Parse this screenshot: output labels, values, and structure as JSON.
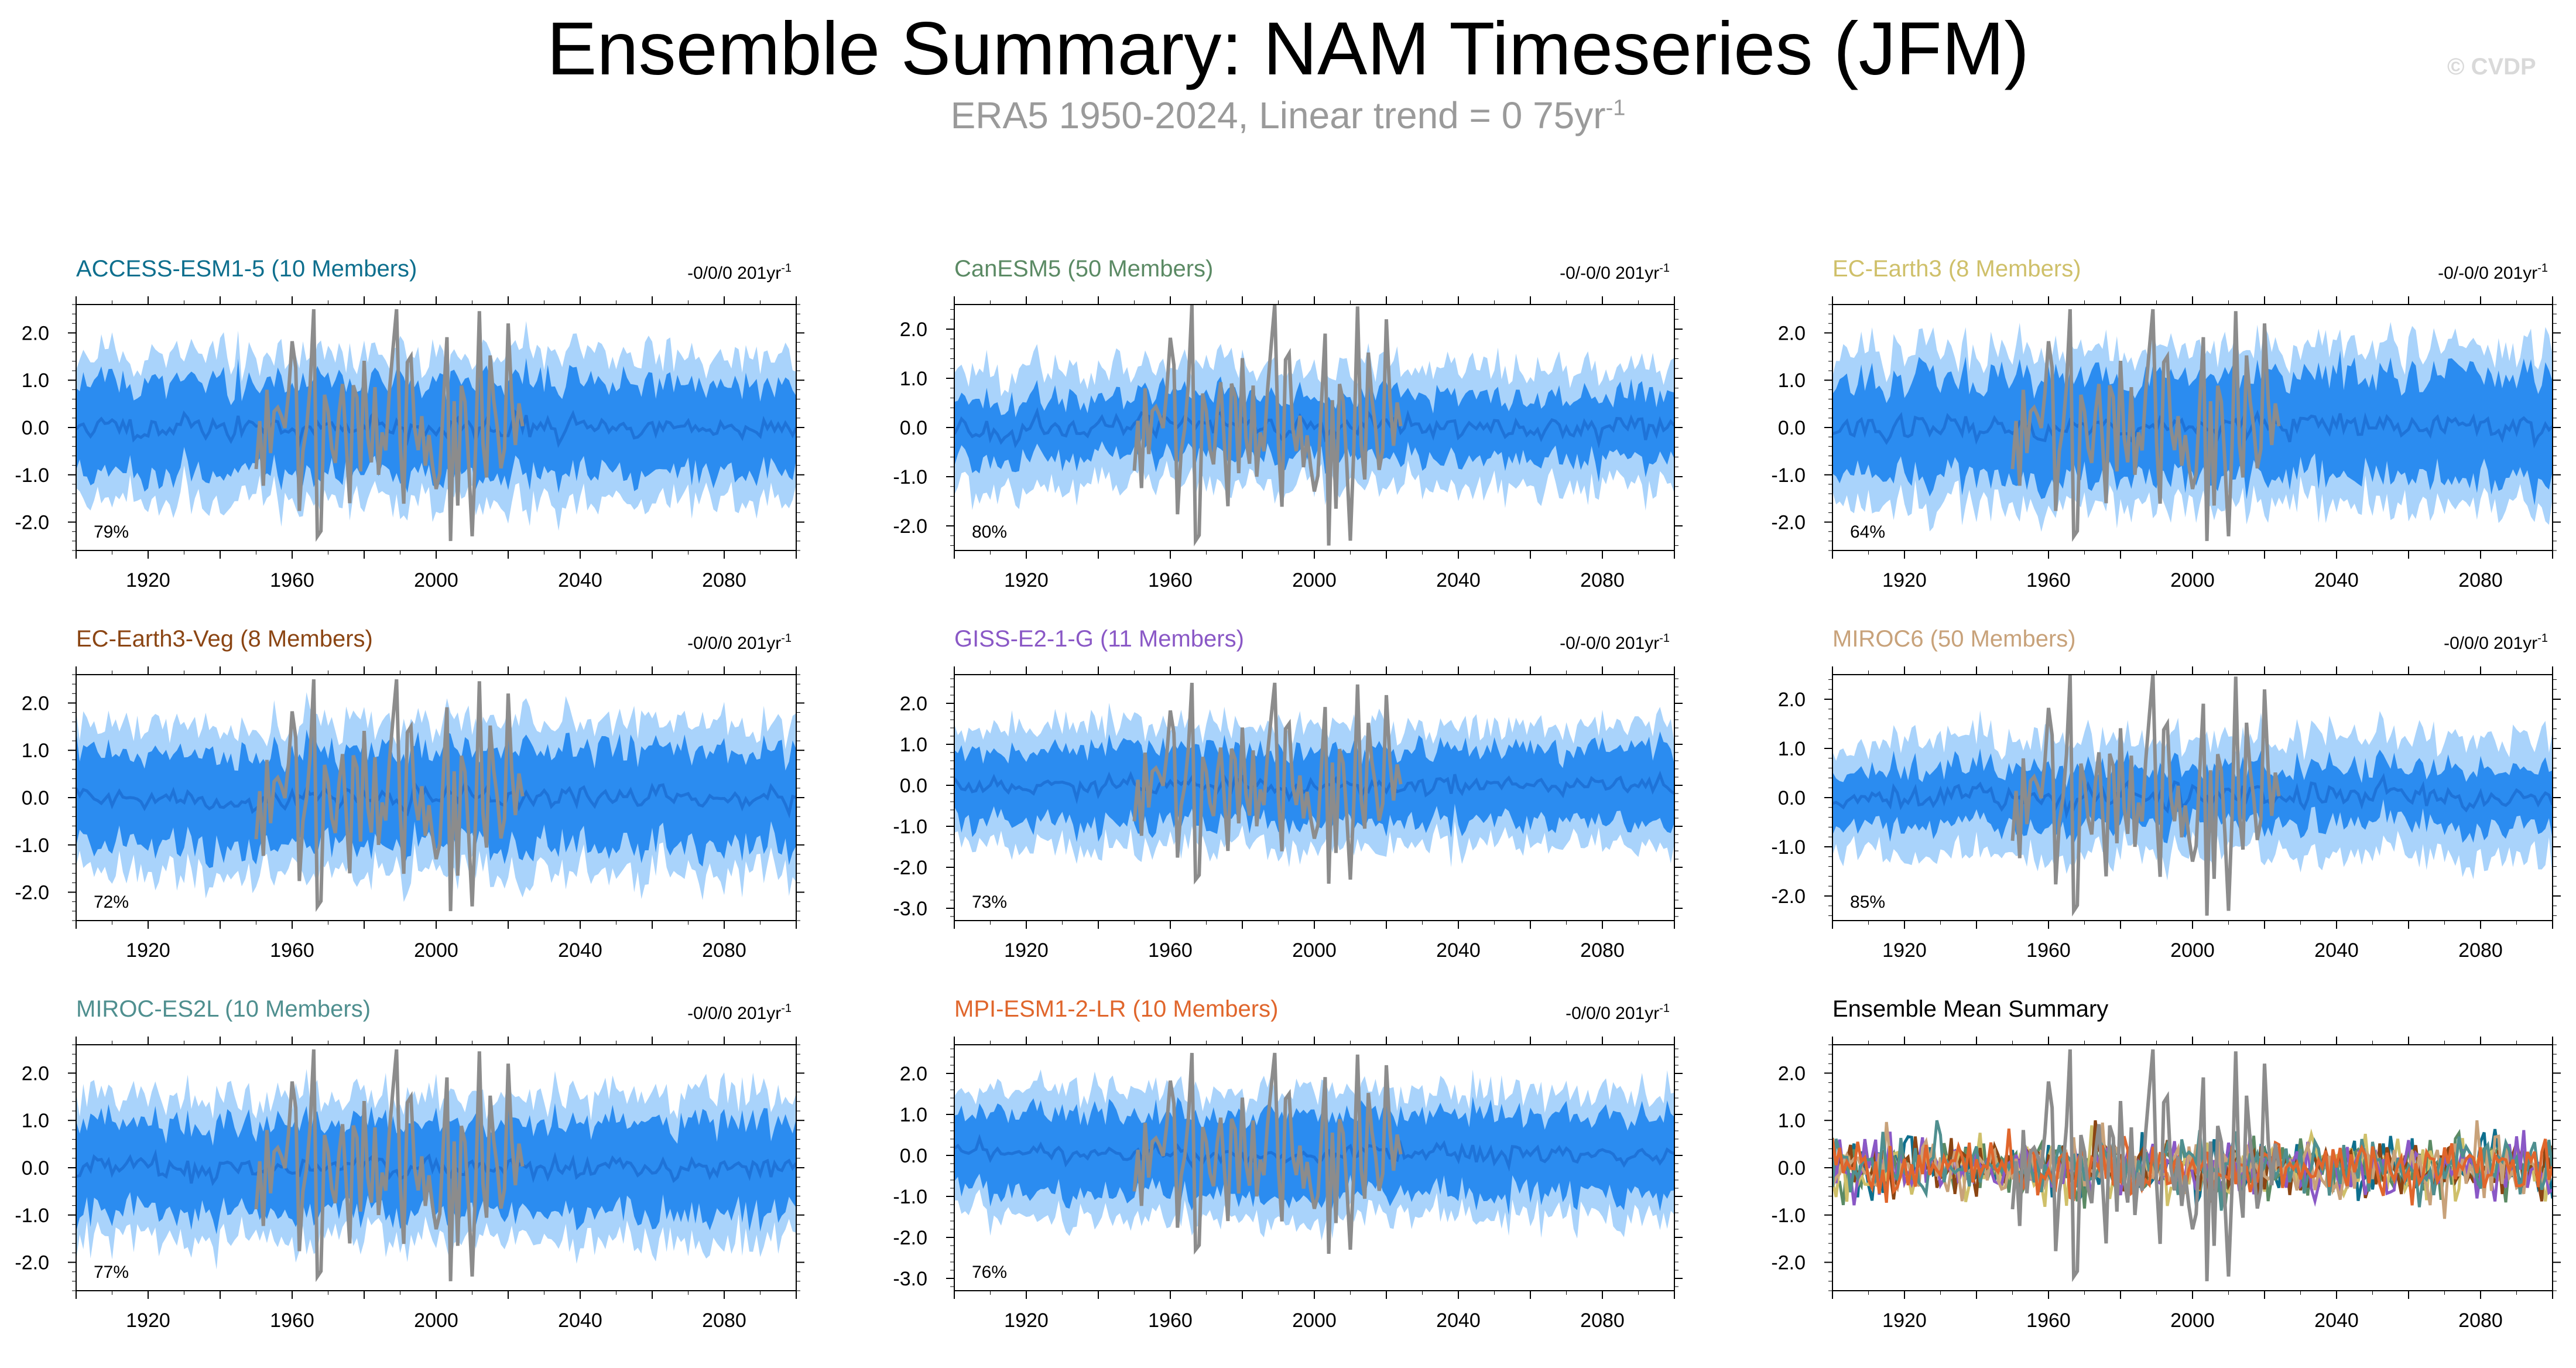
{
  "title": "Ensemble Summary: NAM Timeseries (JFM)",
  "subtitle": {
    "text": "ERA5 1950-2024, Linear trend = 0 75yr",
    "sup": "-1"
  },
  "watermark": "© CVDP",
  "colors": {
    "inner_band": "#2b8cf0",
    "outer_band": "#a9d3fb",
    "mean_line": "#1e73d8",
    "obs_line": "#8c8c8c",
    "axis": "#000000"
  },
  "chart_data": [
    {
      "type": "area",
      "title": "ACCESS-ESM1-5 (10 Members)",
      "title_color": "#0e6f8e",
      "trend_text": "-0/0/0 201yr",
      "trend_sup": "-1",
      "pct": "79%",
      "xlim": [
        1900,
        2100
      ],
      "xticks": [
        1920,
        1960,
        2000,
        2040,
        2080
      ],
      "ylim": [
        -2.6,
        2.6
      ],
      "yticks": [
        2.0,
        1.0,
        0.0,
        -1.0,
        -2.0
      ],
      "ytick_labels": [
        "2.0",
        "1.0",
        "0.0",
        "-1.0",
        "-2.0"
      ],
      "seed": 11,
      "band": 0.9,
      "obs": true
    },
    {
      "type": "area",
      "title": "CanESM5 (50 Members)",
      "title_color": "#5b8a64",
      "trend_text": "-0/-0/0 201yr",
      "trend_sup": "-1",
      "pct": "80%",
      "xlim": [
        1900,
        2100
      ],
      "xticks": [
        1920,
        1960,
        2000,
        2040,
        2080
      ],
      "ylim": [
        -2.5,
        2.5
      ],
      "yticks": [
        2.0,
        1.0,
        0.0,
        -1.0,
        -2.0
      ],
      "ytick_labels": [
        "2.0",
        "1.0",
        "0.0",
        "-1.0",
        "-2.0"
      ],
      "seed": 23,
      "band": 0.6,
      "obs": true
    },
    {
      "type": "area",
      "title": "EC-Earth3 (8 Members)",
      "title_color": "#cfc06a",
      "trend_text": "-0/-0/0 201yr",
      "trend_sup": "-1",
      "pct": "64%",
      "xlim": [
        1900,
        2100
      ],
      "xticks": [
        1920,
        1960,
        2000,
        2040,
        2080
      ],
      "ylim": [
        -2.6,
        2.6
      ],
      "yticks": [
        2.0,
        1.0,
        0.0,
        -1.0,
        -2.0
      ],
      "ytick_labels": [
        "2.0",
        "1.0",
        "0.0",
        "-1.0",
        "-2.0"
      ],
      "seed": 37,
      "band": 1.0,
      "obs": true
    },
    {
      "type": "area",
      "title": "EC-Earth3-Veg (8 Members)",
      "title_color": "#8b4513",
      "trend_text": "-0/0/0 201yr",
      "trend_sup": "-1",
      "pct": "72%",
      "xlim": [
        1900,
        2100
      ],
      "xticks": [
        1920,
        1960,
        2000,
        2040,
        2080
      ],
      "ylim": [
        -2.6,
        2.6
      ],
      "yticks": [
        2.0,
        1.0,
        0.0,
        -1.0,
        -2.0
      ],
      "ytick_labels": [
        "2.0",
        "1.0",
        "0.0",
        "-1.0",
        "-2.0"
      ],
      "seed": 41,
      "band": 0.95,
      "obs": true
    },
    {
      "type": "area",
      "title": "GISS-E2-1-G (11 Members)",
      "title_color": "#8a58c6",
      "trend_text": "-0/-0/0 201yr",
      "trend_sup": "-1",
      "pct": "73%",
      "xlim": [
        1900,
        2100
      ],
      "xticks": [
        1920,
        1960,
        2000,
        2040,
        2080
      ],
      "ylim": [
        -3.3,
        2.7
      ],
      "yticks": [
        2.0,
        1.0,
        0.0,
        -1.0,
        -2.0,
        -3.0
      ],
      "ytick_labels": [
        "2.0",
        "1.0",
        "0.0",
        "-1.0",
        "-2.0",
        "-3.0"
      ],
      "seed": 53,
      "band": 0.85,
      "obs": true
    },
    {
      "type": "area",
      "title": "MIROC6 (50 Members)",
      "title_color": "#c8a27a",
      "trend_text": "-0/0/0 201yr",
      "trend_sup": "-1",
      "pct": "85%",
      "xlim": [
        1900,
        2100
      ],
      "xticks": [
        1920,
        1960,
        2000,
        2040,
        2080
      ],
      "ylim": [
        -2.5,
        2.5
      ],
      "yticks": [
        2.0,
        1.0,
        0.0,
        -1.0,
        -2.0
      ],
      "ytick_labels": [
        "2.0",
        "1.0",
        "0.0",
        "-1.0",
        "-2.0"
      ],
      "seed": 67,
      "band": 0.55,
      "obs": true
    },
    {
      "type": "area",
      "title": "MIROC-ES2L (10 Members)",
      "title_color": "#4f8f8f",
      "trend_text": "-0/0/0 201yr",
      "trend_sup": "-1",
      "pct": "77%",
      "xlim": [
        1900,
        2100
      ],
      "xticks": [
        1920,
        1960,
        2000,
        2040,
        2080
      ],
      "ylim": [
        -2.6,
        2.6
      ],
      "yticks": [
        2.0,
        1.0,
        0.0,
        -1.0,
        -2.0
      ],
      "ytick_labels": [
        "2.0",
        "1.0",
        "0.0",
        "-1.0",
        "-2.0"
      ],
      "seed": 79,
      "band": 0.9,
      "obs": true
    },
    {
      "type": "area",
      "title": "MPI-ESM1-2-LR (10 Members)",
      "title_color": "#e0662c",
      "trend_text": "-0/0/0 201yr",
      "trend_sup": "-1",
      "pct": "76%",
      "xlim": [
        1900,
        2100
      ],
      "xticks": [
        1920,
        1960,
        2000,
        2040,
        2080
      ],
      "ylim": [
        -3.3,
        2.7
      ],
      "yticks": [
        2.0,
        1.0,
        0.0,
        -1.0,
        -2.0,
        -3.0
      ],
      "ytick_labels": [
        "2.0",
        "1.0",
        "0.0",
        "-1.0",
        "-2.0",
        "-3.0"
      ],
      "seed": 97,
      "band": 0.9,
      "obs": true
    },
    {
      "type": "line",
      "title": "Ensemble Mean Summary",
      "title_color": "#000000",
      "trend_text": "",
      "trend_sup": "",
      "pct": "",
      "xlim": [
        1900,
        2100
      ],
      "xticks": [
        1920,
        1960,
        2000,
        2040,
        2080
      ],
      "ylim": [
        -2.6,
        2.6
      ],
      "yticks": [
        2.0,
        1.0,
        0.0,
        -1.0,
        -2.0
      ],
      "ytick_labels": [
        "2.0",
        "1.0",
        "0.0",
        "-1.0",
        "-2.0"
      ],
      "seed": 101,
      "obs": true,
      "series_colors": [
        "#0e6f8e",
        "#5b8a64",
        "#cfc06a",
        "#8b4513",
        "#8a58c6",
        "#c8a27a",
        "#4f8f8f",
        "#e0662c"
      ]
    }
  ]
}
